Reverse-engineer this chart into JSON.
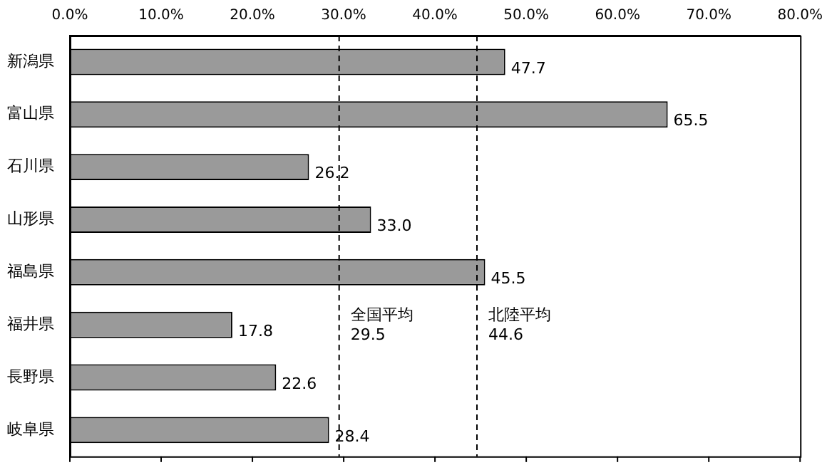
{
  "chart_data": {
    "type": "bar",
    "orientation": "horizontal",
    "categories": [
      "新潟県",
      "富山県",
      "石川県",
      "山形県",
      "福島県",
      "福井県",
      "長野県",
      "岐阜県"
    ],
    "values": [
      47.7,
      65.5,
      26.2,
      33.0,
      45.5,
      17.8,
      22.6,
      28.4
    ],
    "value_labels": [
      "47.7",
      "65.5",
      "26.2",
      "33.0",
      "45.5",
      "17.8",
      "22.6",
      "28.4"
    ],
    "color": "#9a9a9a",
    "xlim": [
      0,
      80
    ],
    "xticks": [
      {
        "value": 0,
        "label": "0.0%"
      },
      {
        "value": 10,
        "label": "10.0%"
      },
      {
        "value": 20,
        "label": "20.0%"
      },
      {
        "value": 30,
        "label": "30.0%"
      },
      {
        "value": 40,
        "label": "40.0%"
      },
      {
        "value": 50,
        "label": "50.0%"
      },
      {
        "value": 60,
        "label": "60.0%"
      },
      {
        "value": 70,
        "label": "70.0%"
      },
      {
        "value": 80,
        "label": "80.0%"
      }
    ],
    "ref_lines": [
      {
        "axis": "x",
        "value": 29.5,
        "label": "全国平均\n29.5",
        "line_style": "dashed"
      },
      {
        "axis": "x",
        "value": 44.6,
        "label": "北陸平均\n44.6",
        "line_style": "dashed"
      }
    ],
    "grid": false,
    "legend": false
  }
}
